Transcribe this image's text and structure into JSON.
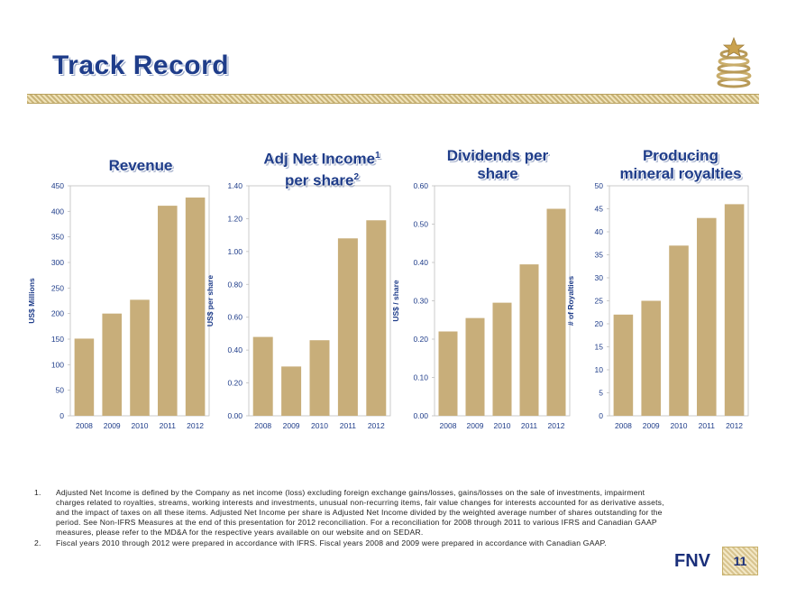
{
  "page": {
    "title": "Track Record",
    "brand": "FNV",
    "page_number": "11",
    "colors": {
      "bar": "#c8ae7a",
      "title": "#1f3d8a",
      "axis_text": "#1f3d8a"
    }
  },
  "chart_titles": [
    {
      "main": "Revenue",
      "sup1": "",
      "line2": "",
      "sup2": ""
    },
    {
      "main": "Adj Net Income",
      "sup1": "1",
      "line2": "per share",
      "sup2": "2"
    },
    {
      "main": "Dividends per",
      "sup1": "",
      "line2": "share",
      "sup2": ""
    },
    {
      "main": "Producing",
      "sup1": "",
      "line2": "mineral royalties",
      "sup2": ""
    }
  ],
  "chart_data": [
    {
      "type": "bar",
      "title": "Revenue",
      "ylabel": "US$ Millions",
      "categories": [
        "2008",
        "2009",
        "2010",
        "2011",
        "2012"
      ],
      "values": [
        151,
        200,
        227,
        411,
        427
      ],
      "ylim": [
        0,
        450
      ],
      "yticks": [
        "0",
        "50",
        "100",
        "150",
        "200",
        "250",
        "300",
        "350",
        "400",
        "450"
      ],
      "grid": false
    },
    {
      "type": "bar",
      "title": "Adj Net Income per share",
      "ylabel": "US$ per share",
      "categories": [
        "2008",
        "2009",
        "2010",
        "2011",
        "2012"
      ],
      "values": [
        0.48,
        0.3,
        0.46,
        1.08,
        1.19
      ],
      "ylim": [
        0,
        1.4
      ],
      "yticks": [
        "0.00",
        "0.20",
        "0.40",
        "0.60",
        "0.80",
        "1.00",
        "1.20",
        "1.40"
      ],
      "grid": false
    },
    {
      "type": "bar",
      "title": "Dividends per share",
      "ylabel": "US$ / share",
      "categories": [
        "2008",
        "2009",
        "2010",
        "2011",
        "2012"
      ],
      "values": [
        0.22,
        0.255,
        0.295,
        0.395,
        0.54
      ],
      "ylim": [
        0,
        0.6
      ],
      "yticks": [
        "0.00",
        "0.10",
        "0.20",
        "0.30",
        "0.40",
        "0.50",
        "0.60"
      ],
      "grid": false
    },
    {
      "type": "bar",
      "title": "Producing mineral royalties",
      "ylabel": "# of Royalties",
      "categories": [
        "2008",
        "2009",
        "2010",
        "2011",
        "2012"
      ],
      "values": [
        22,
        25,
        37,
        43,
        46
      ],
      "ylim": [
        0,
        50
      ],
      "yticks": [
        "0",
        "5",
        "10",
        "15",
        "20",
        "25",
        "30",
        "35",
        "40",
        "45",
        "50"
      ],
      "grid": false
    }
  ],
  "footnotes": [
    {
      "num": "1.",
      "text": "Adjusted Net Income is defined by the Company as net income (loss) excluding foreign exchange gains/losses, gains/losses on the sale of investments, impairment charges related to royalties, streams, working interests and investments, unusual non-recurring items, fair value changes for interests accounted for as derivative assets, and the impact of taxes on all these items.  Adjusted Net Income per share is Adjusted Net Income divided by the weighted average number of shares outstanding for the period.   See Non-IFRS Measures at the end of this presentation for 2012 reconciliation. For a reconciliation for 2008 through 2011 to various IFRS and Canadian GAAP measures, please refer to the MD&A for the respective years available on our website and on SEDAR."
    },
    {
      "num": "2.",
      "text": "Fiscal years 2010 through 2012 were prepared in accordance with IFRS. Fiscal years 2008 and 2009 were prepared in accordance with Canadian GAAP."
    }
  ]
}
